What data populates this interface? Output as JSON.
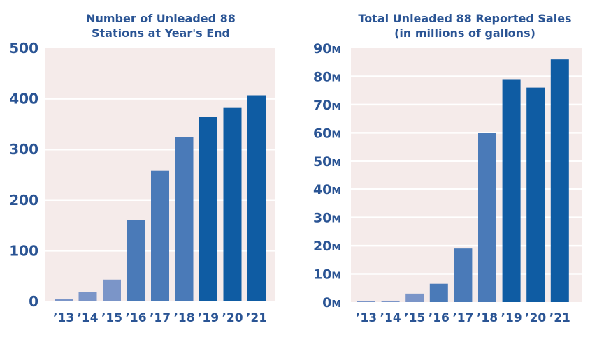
{
  "chart_data": [
    {
      "type": "bar",
      "title": "Number of Unleaded 88 Stations at Year's End",
      "title_lines": [
        "Number of Unleaded 88",
        "Stations at Year's End"
      ],
      "xlabel": "",
      "ylabel": "",
      "categories": [
        "'13",
        "'14",
        "'15",
        "'16",
        "'17",
        "'18",
        "'19",
        "'20",
        "'21"
      ],
      "values": [
        5,
        18,
        43,
        160,
        258,
        325,
        364,
        382,
        407
      ],
      "ylim": [
        0,
        500
      ],
      "yticks": [
        0,
        100,
        200,
        300,
        400,
        500
      ],
      "ytick_labels": [
        "0",
        "100",
        "200",
        "300",
        "400",
        "500"
      ],
      "grid": true,
      "bar_colors": [
        "#7b95c8",
        "#7b95c8",
        "#7b95c8",
        "#4a7ab8",
        "#4a7ab8",
        "#4a7ab8",
        "#0f5ca3",
        "#0f5ca3",
        "#0f5ca3"
      ],
      "plot_background": "#f5ebea"
    },
    {
      "type": "bar",
      "title": "Total Unleaded 88 Reported Sales (in millions of gallons)",
      "title_lines": [
        "Total Unleaded 88 Reported Sales",
        "(in millions of gallons)"
      ],
      "xlabel": "",
      "ylabel": "",
      "categories": [
        "'13",
        "'14",
        "'15",
        "'16",
        "'17",
        "'18",
        "'19",
        "'20",
        "'21"
      ],
      "values": [
        0.3,
        0.5,
        3,
        6.5,
        19,
        60,
        79,
        76,
        86
      ],
      "units": "millions of gallons",
      "ylim": [
        0,
        90
      ],
      "yticks": [
        0,
        10,
        20,
        30,
        40,
        50,
        60,
        70,
        80,
        90
      ],
      "ytick_labels": [
        "0M",
        "10M",
        "20M",
        "30M",
        "40M",
        "50M",
        "60M",
        "70M",
        "80M",
        "90M"
      ],
      "grid": true,
      "bar_colors": [
        "#7b95c8",
        "#7b95c8",
        "#7b95c8",
        "#4a7ab8",
        "#4a7ab8",
        "#4a7ab8",
        "#0f5ca3",
        "#0f5ca3",
        "#0f5ca3"
      ],
      "plot_background": "#f5ebea"
    }
  ]
}
